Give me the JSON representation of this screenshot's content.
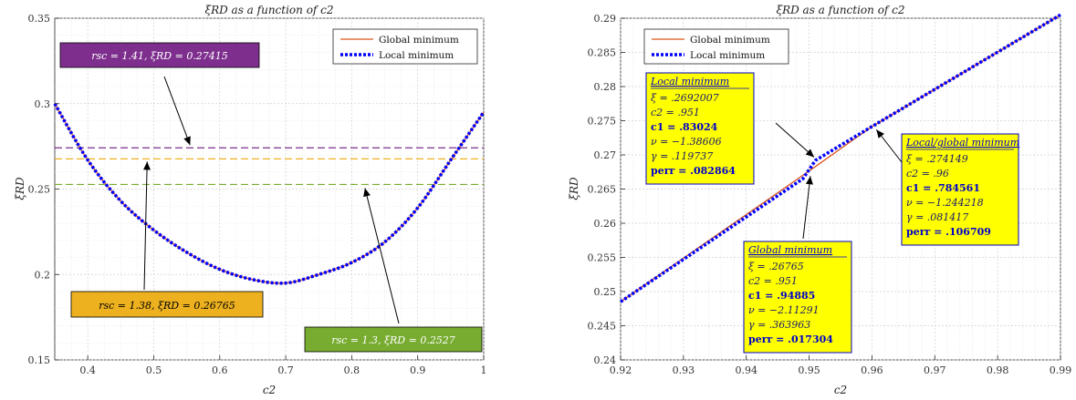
{
  "colors": {
    "global": "#d95319",
    "local": "#0000ff",
    "line_purple": "#7e2f8e",
    "line_orange": "#edb120",
    "line_green": "#77ac30",
    "annot_yellow": "#ffff00",
    "annot_border": "#0000cc",
    "annot_text": "#0000cc"
  },
  "chart_data": [
    {
      "type": "line",
      "title": "ξRD as a function of c2",
      "xlabel": "c2",
      "ylabel": "ξRD",
      "xlim": [
        0.35,
        1.0
      ],
      "ylim": [
        0.15,
        0.35
      ],
      "xticks": [
        "0.4",
        "0.5",
        "0.6",
        "0.7",
        "0.8",
        "0.9",
        "1"
      ],
      "yticks": [
        "0.15",
        "0.2",
        "0.25",
        "0.3",
        "0.35"
      ],
      "grid": true,
      "legend_position": "top-right",
      "legend": [
        "Global minimum",
        "Local minimum"
      ],
      "x": [
        0.35,
        0.4,
        0.45,
        0.5,
        0.55,
        0.6,
        0.65,
        0.7,
        0.75,
        0.8,
        0.85,
        0.9,
        0.95,
        1.0
      ],
      "series": [
        {
          "name": "Global minimum",
          "values": [
            0.3,
            0.267,
            0.243,
            0.226,
            0.213,
            0.203,
            0.197,
            0.195,
            0.2,
            0.207,
            0.219,
            0.239,
            0.267,
            0.295
          ]
        },
        {
          "name": "Local minimum",
          "values": [
            0.3,
            0.267,
            0.243,
            0.226,
            0.213,
            0.203,
            0.197,
            0.195,
            0.2,
            0.207,
            0.219,
            0.239,
            0.267,
            0.295
          ]
        }
      ],
      "hlines": [
        {
          "y": 0.27415,
          "color": "#7e2f8e"
        },
        {
          "y": 0.26765,
          "color": "#edb120"
        },
        {
          "y": 0.2527,
          "color": "#77ac30"
        }
      ],
      "annotations": [
        {
          "text": "rsc = 1.41, ξRD = 0.27415",
          "fill": "#7e2f8e",
          "text_color": "#ffffff",
          "arrow_to": [
            0.555,
            0.27415
          ]
        },
        {
          "text": "rsc = 1.38, ξRD = 0.26765",
          "fill": "#edb120",
          "text_color": "#000000",
          "arrow_to": [
            0.49,
            0.26765
          ]
        },
        {
          "text": "rsc = 1.3, ξRD = 0.2527",
          "fill": "#77ac30",
          "text_color": "#ffffff",
          "arrow_to": [
            0.82,
            0.2527
          ]
        }
      ]
    },
    {
      "type": "line",
      "title": "ξRD as a function of c2",
      "xlabel": "c2",
      "ylabel": "ξRD",
      "xlim": [
        0.92,
        0.99
      ],
      "ylim": [
        0.24,
        0.29
      ],
      "xticks": [
        "0.92",
        "0.93",
        "0.94",
        "0.95",
        "0.96",
        "0.97",
        "0.98",
        "0.99"
      ],
      "yticks": [
        "0.24",
        "0.245",
        "0.25",
        "0.255",
        "0.26",
        "0.265",
        "0.27",
        "0.275",
        "0.28",
        "0.285",
        "0.29"
      ],
      "grid": true,
      "legend_position": "top-left",
      "legend": [
        "Global minimum",
        "Local minimum"
      ],
      "series": [
        {
          "name": "Global minimum",
          "x": [
            0.92,
            0.95,
            0.96,
            0.99
          ],
          "values": [
            0.2485,
            0.26765,
            0.274149,
            0.2905
          ]
        },
        {
          "name": "Local minimum",
          "x": [
            0.92,
            0.949,
            0.951,
            0.96,
            0.99
          ],
          "values": [
            0.2485,
            0.2665,
            0.2692,
            0.274149,
            0.2905
          ]
        }
      ],
      "annotations": [
        {
          "header": "Local minimum",
          "lines": [
            "ξ = .2692007",
            "c2 = .951",
            "c1 = .83024",
            "ν = −1.38606",
            "γ = .119737",
            "perr = .082864"
          ],
          "arrow_to": [
            0.951,
            0.2692
          ]
        },
        {
          "header": "Global minimum",
          "lines": [
            "ξ = .26765",
            "c2 = .951",
            "c1 = .94885",
            "ν = −2.11291",
            "γ = .363963",
            "perr = .017304"
          ],
          "arrow_to": [
            0.9505,
            0.2672
          ]
        },
        {
          "header": "Local/global minimum",
          "lines": [
            "ξ = .274149",
            "c2 = .96",
            "c1 = .784561",
            "ν = −1.244218",
            "γ = .081417",
            "perr = .106709"
          ],
          "arrow_to": [
            0.9605,
            0.2742
          ]
        }
      ]
    }
  ]
}
